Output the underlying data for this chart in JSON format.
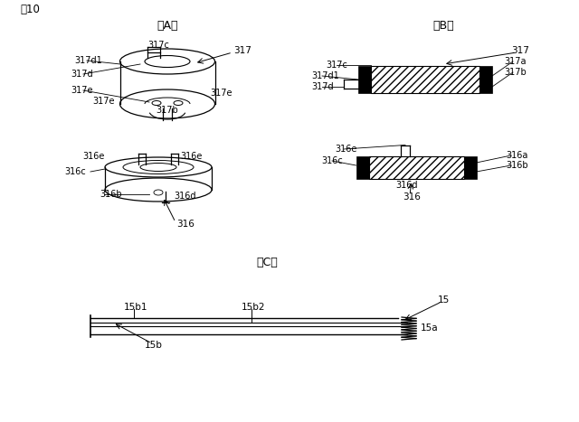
{
  "bg": "#ffffff",
  "title": "図10",
  "label_A": "（A）",
  "label_B": "（B）",
  "label_C": "（C）"
}
